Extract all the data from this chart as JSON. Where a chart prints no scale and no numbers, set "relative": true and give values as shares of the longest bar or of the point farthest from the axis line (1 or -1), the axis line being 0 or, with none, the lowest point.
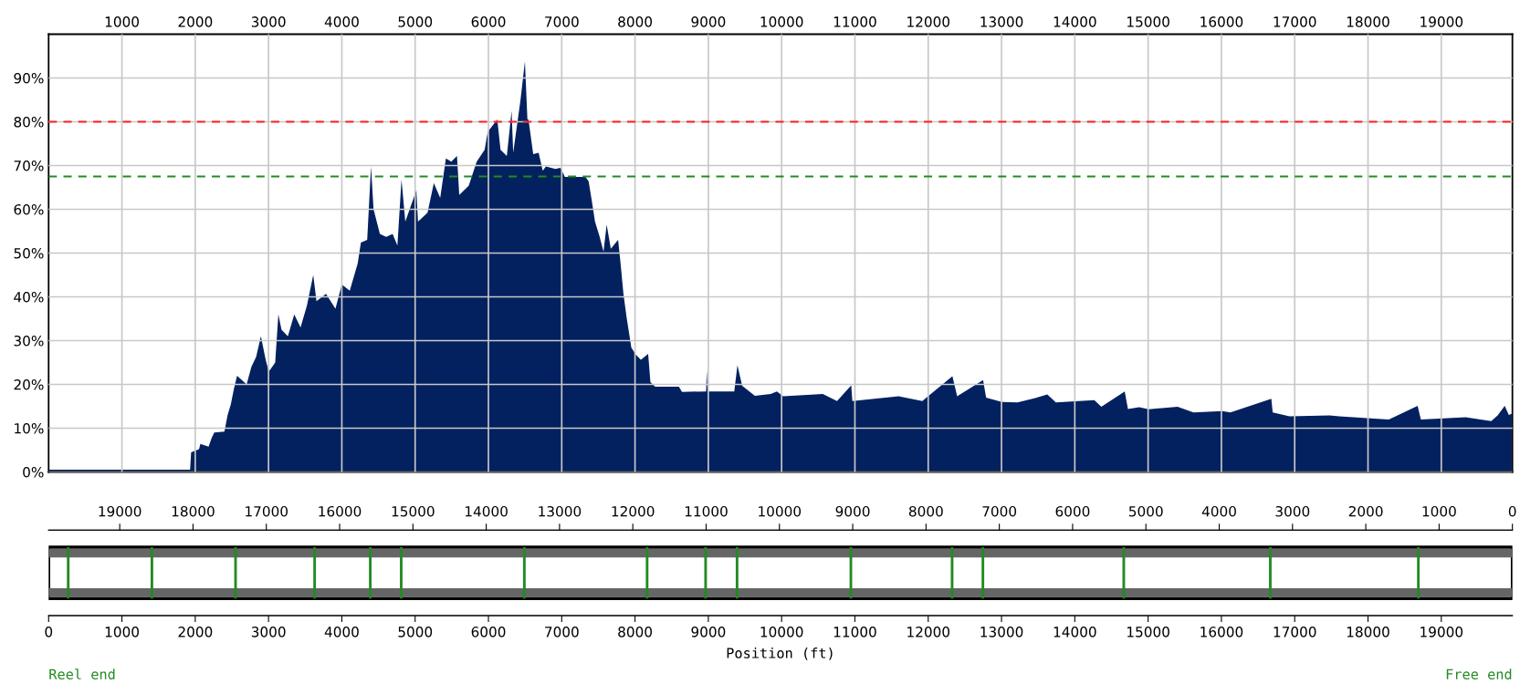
{
  "chart_data": [
    {
      "type": "area",
      "xlim": [
        0,
        19970
      ],
      "ylim": [
        0,
        100
      ],
      "xticks": [
        1000,
        2000,
        3000,
        4000,
        5000,
        6000,
        7000,
        8000,
        9000,
        10000,
        11000,
        12000,
        13000,
        14000,
        15000,
        16000,
        17000,
        18000,
        19000
      ],
      "yticks": [
        {
          "value": 0,
          "label": "0%"
        },
        {
          "value": 10,
          "label": "10%"
        },
        {
          "value": 20,
          "label": "20%"
        },
        {
          "value": 30,
          "label": "30%"
        },
        {
          "value": 40,
          "label": "40%"
        },
        {
          "value": 50,
          "label": "50%"
        },
        {
          "value": 60,
          "label": "60%"
        },
        {
          "value": 70,
          "label": "70%"
        },
        {
          "value": 80,
          "label": "80%"
        },
        {
          "value": 90,
          "label": "90%"
        }
      ],
      "grid": true,
      "ref_lines": [
        {
          "axis": "y",
          "value": 80,
          "color": "#ff2020",
          "line_style": "dashed"
        },
        {
          "axis": "y",
          "value": 67.5,
          "color": "#228b22",
          "line_style": "dashed"
        }
      ],
      "series": [
        {
          "color": "#03215f",
          "x": [
            0,
            1930,
            1944,
            2052,
            2070,
            2182,
            2225,
            2260,
            2398,
            2442,
            2485,
            2528,
            2571,
            2701,
            2766,
            2831,
            2896,
            2961,
            3004,
            3091,
            3134,
            3177,
            3264,
            3351,
            3437,
            3524,
            3610,
            3654,
            3784,
            3913,
            4000,
            4108,
            4216,
            4260,
            4346,
            4398,
            4433,
            4519,
            4606,
            4693,
            4758,
            4814,
            4866,
            5017,
            5039,
            5169,
            5255,
            5342,
            5420,
            5494,
            5571,
            5602,
            5732,
            5840,
            5948,
            5991,
            6121,
            6165,
            6251,
            6316,
            6338,
            6437,
            6498,
            6532,
            6546,
            6611,
            6685,
            6741,
            6784,
            6914,
            6983,
            7043,
            7324,
            7367,
            7410,
            7454,
            7518,
            7570,
            7613,
            7670,
            7769,
            7799,
            7842,
            7886,
            7950,
            8015,
            8080,
            8179,
            8210,
            8274,
            8598,
            8641,
            8970,
            8978,
            8990,
            9354,
            9397,
            9462,
            9635,
            9851,
            9935,
            10022,
            10562,
            10756,
            10950,
            10965,
            11596,
            11920,
            12330,
            12395,
            12749,
            12790,
            13004,
            13218,
            13459,
            13624,
            13742,
            14266,
            14362,
            14681,
            14725,
            14878,
            15009,
            15402,
            15620,
            16013,
            16122,
            16681,
            16700,
            16930,
            17476,
            17607,
            18284,
            18677,
            18721,
            19332,
            19681,
            19769,
            19865,
            19921,
            19960
          ],
          "values": [
            0.5,
            0.5,
            4.5,
            5.2,
            6.4,
            5.8,
            7.8,
            9,
            9.2,
            13,
            15.4,
            19,
            22,
            20,
            24,
            26.3,
            31,
            25.6,
            22.9,
            25,
            36,
            32.5,
            31,
            36,
            33,
            38,
            45,
            39,
            40.7,
            37.3,
            42.8,
            41.4,
            47.6,
            52.4,
            53,
            69.8,
            60,
            54.4,
            53.7,
            54.4,
            51.7,
            66.8,
            57.2,
            64.4,
            57.2,
            59.2,
            66,
            62.6,
            71.6,
            70.9,
            72.2,
            63.3,
            65.4,
            70.9,
            73.6,
            77.7,
            80.5,
            73.6,
            72.2,
            82.5,
            72.9,
            84.9,
            93.8,
            80.5,
            80.5,
            72.6,
            72.9,
            68.8,
            69.8,
            69.2,
            69.5,
            67.4,
            67.4,
            66.4,
            62,
            57.2,
            53.7,
            50.3,
            56.5,
            51,
            53,
            48.3,
            40.7,
            35.2,
            28.4,
            26.7,
            25.6,
            27,
            20.5,
            19.5,
            19.5,
            18.3,
            18.4,
            23.2,
            18.4,
            18.4,
            24.4,
            19.7,
            17.4,
            17.8,
            18.4,
            17.3,
            17.8,
            16.2,
            19.8,
            16.2,
            17.3,
            16.2,
            21.9,
            17.3,
            21,
            17,
            16,
            15.9,
            16.9,
            17.7,
            15.9,
            16.4,
            14.9,
            18.4,
            14.4,
            14.8,
            14.3,
            14.9,
            13.6,
            13.9,
            13.6,
            16.7,
            13.6,
            12.7,
            12.9,
            12.7,
            12,
            15.1,
            12,
            12.5,
            11.6,
            12.9,
            15.1,
            13,
            13.3
          ]
        }
      ]
    },
    {
      "type": "bar",
      "relative": true,
      "xlabel": "Position (ft)",
      "xlim": [
        0,
        19970
      ],
      "xticks": [
        0,
        1000,
        2000,
        3000,
        4000,
        5000,
        6000,
        7000,
        8000,
        9000,
        10000,
        11000,
        12000,
        13000,
        14000,
        15000,
        16000,
        17000,
        18000,
        19000
      ],
      "x2lim": [
        19970,
        0
      ],
      "x2ticks": [
        19000,
        18000,
        17000,
        16000,
        15000,
        14000,
        13000,
        12000,
        11000,
        10000,
        9000,
        8000,
        7000,
        6000,
        5000,
        4000,
        3000,
        2000,
        1000,
        0
      ],
      "series": [
        {
          "color": "#228b22",
          "x": [
            267,
            1409,
            2550,
            3629,
            4388,
            4810,
            6490,
            8165,
            8963,
            9392,
            10945,
            12326,
            12746,
            14668,
            16667,
            18687
          ],
          "values": [
            1,
            1,
            1,
            1,
            1,
            1,
            1,
            1,
            1,
            1,
            1,
            1,
            1,
            1,
            1,
            1
          ]
        }
      ],
      "annotations": [
        "Reel end",
        "Free end"
      ]
    }
  ]
}
